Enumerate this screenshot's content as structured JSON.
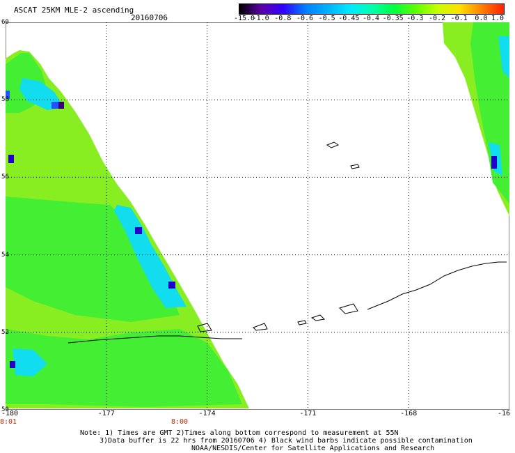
{
  "header": {
    "title": "ASCAT 25KM MLE-2 ascending",
    "date": "20160706"
  },
  "colorbar": {
    "tick_labels": [
      "-15.0",
      "-1.0",
      "-0.8",
      "-0.6",
      "-0.5",
      "-0.45",
      "-0.4",
      "-0.35",
      "-0.3",
      "-0.2",
      "-0.1",
      "0.0",
      "1.0"
    ],
    "colors": [
      "#000000",
      "#5b00a8",
      "#3300ff",
      "#0080ff",
      "#00b0ff",
      "#00e8ff",
      "#00ffb0",
      "#00ff40",
      "#60ff00",
      "#c8ff00",
      "#ffe000",
      "#ff8000",
      "#ff2000"
    ]
  },
  "map": {
    "lat_labels": [
      "60",
      "58",
      "56",
      "54",
      "52",
      "50"
    ],
    "lon_labels": [
      "-180",
      "-177",
      "-174",
      "-171",
      "-168",
      "-16"
    ],
    "time_labels": [
      "8:01",
      "8:00"
    ],
    "colors": {
      "swath_main": "#88ee22",
      "swath_green": "#44ee33",
      "swath_cyan": "#11ddee",
      "swath_blue": "#2255ff",
      "swath_darkblue": "#2200cc",
      "swath_purple": "#330077",
      "grid": "#000000"
    }
  },
  "footer": {
    "note_line1": "Note: 1) Times are GMT 2)Times along bottom correspond to measurement at 55N",
    "note_line2": "3)Data buffer is 22 hrs from 20160706 4) Black wind barbs indicate possible contamination",
    "credit": "NOAA/NESDIS/Center for Satellite Applications and Research"
  }
}
